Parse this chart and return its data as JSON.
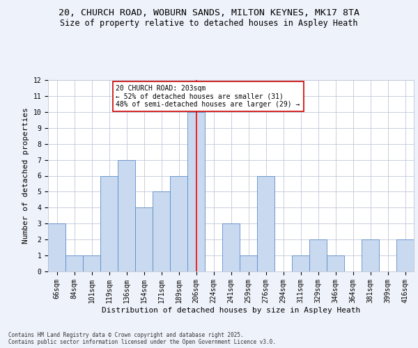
{
  "title_line1": "20, CHURCH ROAD, WOBURN SANDS, MILTON KEYNES, MK17 8TA",
  "title_line2": "Size of property relative to detached houses in Aspley Heath",
  "xlabel": "Distribution of detached houses by size in Aspley Heath",
  "ylabel": "Number of detached properties",
  "categories": [
    "66sqm",
    "84sqm",
    "101sqm",
    "119sqm",
    "136sqm",
    "154sqm",
    "171sqm",
    "189sqm",
    "206sqm",
    "224sqm",
    "241sqm",
    "259sqm",
    "276sqm",
    "294sqm",
    "311sqm",
    "329sqm",
    "346sqm",
    "364sqm",
    "381sqm",
    "399sqm",
    "416sqm"
  ],
  "values": [
    3,
    1,
    1,
    6,
    7,
    4,
    5,
    6,
    10,
    0,
    3,
    1,
    6,
    0,
    1,
    2,
    1,
    0,
    2,
    0,
    2
  ],
  "bar_color": "#c9d9f0",
  "bar_edge_color": "#5b8dc8",
  "red_line_x": 8,
  "ylim": [
    0,
    12
  ],
  "yticks": [
    0,
    1,
    2,
    3,
    4,
    5,
    6,
    7,
    8,
    9,
    10,
    11,
    12
  ],
  "annotation_text": "20 CHURCH ROAD: 203sqm\n← 52% of detached houses are smaller (31)\n48% of semi-detached houses are larger (29) →",
  "annotation_box_color": "#ffffff",
  "annotation_box_edge": "#cc0000",
  "footer_line1": "Contains HM Land Registry data © Crown copyright and database right 2025.",
  "footer_line2": "Contains public sector information licensed under the Open Government Licence v3.0.",
  "bg_color": "#eef2fa",
  "plot_bg_color": "#ffffff",
  "grid_color": "#c0c8d8",
  "title_fontsize": 9.5,
  "subtitle_fontsize": 8.5,
  "tick_fontsize": 7,
  "ylabel_fontsize": 8,
  "xlabel_fontsize": 8,
  "annotation_fontsize": 7,
  "footer_fontsize": 5.5
}
